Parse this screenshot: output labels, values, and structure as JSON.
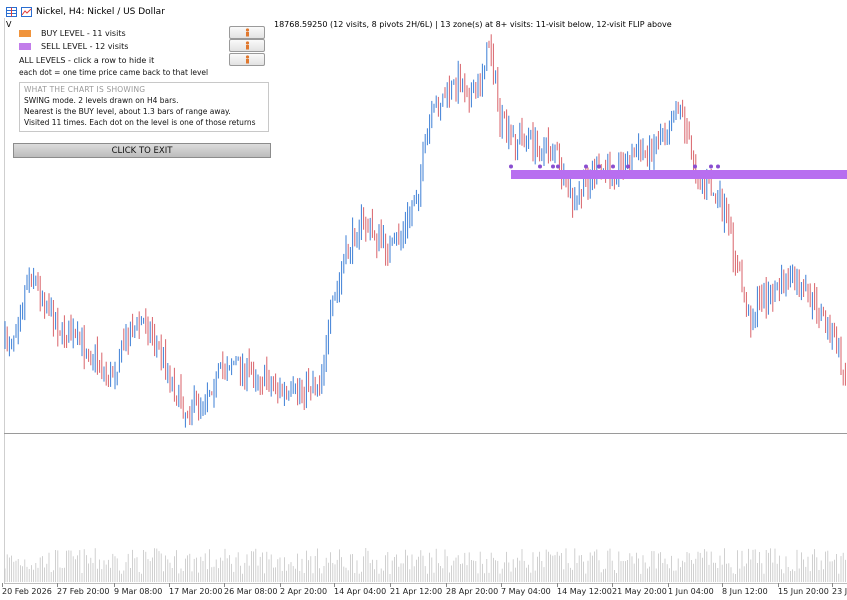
{
  "header": {
    "title": "Nickel, H4:  Nickel / US Dollar"
  },
  "info_bar": {
    "prefix": "V",
    "price_text": "18768.59250 (12 visits, 8 pivots 2H/6L)  |   13 zone(s) at 8+ visits: 11-visit below, 12-visit FLIP above"
  },
  "panel": {
    "rows": [
      {
        "label": "BUY LEVEL  -  11 visits",
        "color": "#f0943c"
      },
      {
        "label": "SELL LEVEL  -  12 visits",
        "color": "#c27dea"
      },
      {
        "label": "ALL LEVELS  - click a row to hide it",
        "color": ""
      }
    ],
    "note": "each dot = one time price came back to that level",
    "box": {
      "title": "WHAT THE CHART IS SHOWING",
      "lines": [
        "SWING mode. 2 levels drawn on H4 bars.",
        "Nearest is the BUY level, about 1.3 bars of range away.",
        "Visited 11 times. Each dot on the level is one of those returns"
      ]
    },
    "exit_label": "CLICK TO EXIT"
  },
  "x_axis": {
    "labels": [
      "20 Feb 2026",
      "27 Feb 20:00",
      "9 Mar 08:00",
      "17 Mar 20:00",
      "26 Mar 08:00",
      "2 Apr 20:00",
      "14 Apr 04:00",
      "21 Apr 12:00",
      "28 Apr 20:00",
      "7 May 04:00",
      "14 May 12:00",
      "21 May 20:00",
      "1 Jun 04:00",
      "8 Jun 12:00",
      "15 Jun 20:00",
      "23 J"
    ]
  },
  "colors": {
    "bull": "#3d7fd6",
    "bear": "#d9626a",
    "zone": "#b86ef0",
    "dot": "#8a4ed0"
  }
}
